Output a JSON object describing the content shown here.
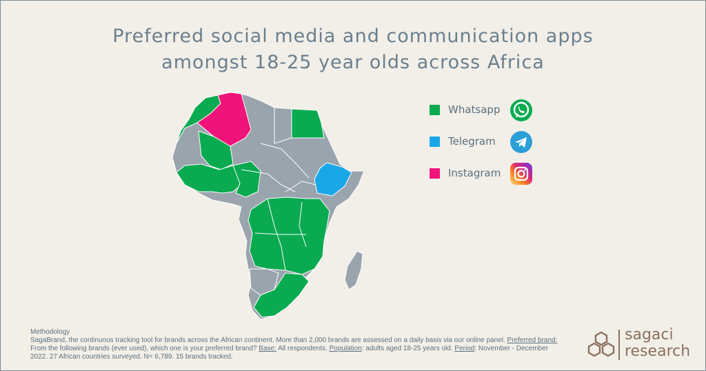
{
  "title": {
    "line1": "Preferred social media and communication apps",
    "line2": "amongst 18-25 year olds across Africa"
  },
  "colors": {
    "background": "#f1efe8",
    "whatsapp": "#0aaa50",
    "telegram": "#1aa7e8",
    "instagram": "#f0137a",
    "no_data": "#9aa4ad",
    "title": "#6a7f8e",
    "brand": "#8c7060"
  },
  "legend": [
    {
      "label": "Whatsapp",
      "color": "#0aaa50",
      "icon": "whatsapp-icon"
    },
    {
      "label": "Telegram",
      "color": "#1aa7e8",
      "icon": "telegram-icon"
    },
    {
      "label": "Instagram",
      "color": "#f0137a",
      "icon": "instagram-icon"
    }
  ],
  "map": {
    "regions": [
      {
        "name": "Morocco",
        "app": "Whatsapp"
      },
      {
        "name": "Algeria",
        "app": "Instagram"
      },
      {
        "name": "Egypt",
        "app": "Whatsapp"
      },
      {
        "name": "Ethiopia",
        "app": "Telegram"
      },
      {
        "name": "Mali",
        "app": "Whatsapp"
      },
      {
        "name": "Nigeria",
        "app": "Whatsapp"
      },
      {
        "name": "DR Congo",
        "app": "Whatsapp"
      },
      {
        "name": "Angola",
        "app": "Whatsapp"
      },
      {
        "name": "South Africa",
        "app": "Whatsapp"
      }
    ]
  },
  "methodology": {
    "heading": "Methodology",
    "intro": "SagaBrand, the continuous tracking tool for brands across the African continent. More than 2,000 brands are assessed on a daily basis via our online panel.",
    "preferred_brand_label": "Preferred brand:",
    "preferred_brand_text": "From the following brands (ever used), which one is your preferred brand?",
    "base_label": "Base:",
    "base_text": "All respondents.",
    "population_label": "Population",
    "population_text": ": adults aged 18-25 years old.",
    "period_label": "Period",
    "period_text": ": November - December 2022. 27 African countries surveyed. N= 6,789. 15 brands tracked."
  },
  "logo": {
    "line1": "sagaci",
    "line2": "research"
  }
}
